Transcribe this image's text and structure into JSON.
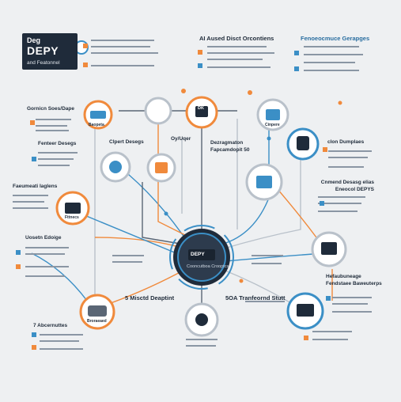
{
  "header": {
    "brand_small": "Deg",
    "brand_big": "DEPY",
    "brand_sub": "and Featonnel",
    "col2_title": "AI Aused Disct Orcontiens",
    "col3_title": "Fenoeocmuce Gerapges"
  },
  "left_labels": {
    "l1": "Gornicn Soes/Dape",
    "l2": "Fenteer Desegs",
    "l3": "Faeumeati Iaglens",
    "l4": "Uosetn Edoige",
    "l5": "7 Abcernuttes"
  },
  "mid_labels": {
    "m1": "Clpert Desegs",
    "m2": "Oy/Uqer",
    "m3": "Dezragmaton Fapcamdopit 50",
    "center_title": "5 Misctd Deaptint",
    "center_right": "5OA Tranfeornd Stutt"
  },
  "right_labels": {
    "r1": "clon Dumplaes",
    "r2": "Cnmend Desasg elias Eneocol DEPYS",
    "r3": "Hefaubuneage Fendstaee Baweuterps"
  },
  "badge_texts": {
    "hub_label": "DEPY",
    "hub_sub": "Cooncutboa Crooptcs",
    "n1": "Baopeta",
    "n2": "DK",
    "n3": "Cinpere",
    "n4": "Fttnecs",
    "n5": "Broraeaed"
  },
  "colors": {
    "orange": "#f08a3c",
    "blue": "#3b8fc6",
    "navy": "#1f2b3a",
    "grey": "#b9c1ca"
  }
}
